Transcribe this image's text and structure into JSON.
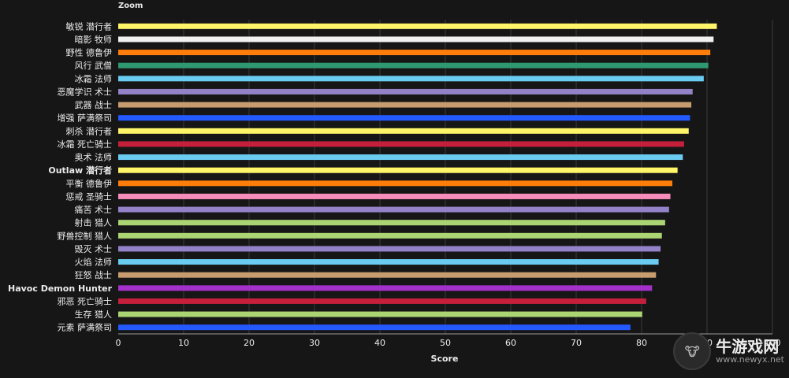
{
  "zoom_label": "Zoom",
  "watermark": {
    "cn": "牛游戏网",
    "url": "www.newyx.net"
  },
  "chart_data": {
    "type": "bar",
    "orientation": "horizontal",
    "xlabel": "Score",
    "xlim": [
      0,
      100
    ],
    "xticks": [
      0,
      10,
      20,
      30,
      40,
      50,
      60,
      70,
      80,
      90,
      100
    ],
    "grid": true,
    "legend": "none",
    "categories": [
      "敏锐 潜行者",
      "暗影 牧师",
      "野性 德鲁伊",
      "风行 武僧",
      "冰霜 法师",
      "恶魔学识 术士",
      "武器 战士",
      "增强 萨满祭司",
      "刺杀 潜行者",
      "冰霜 死亡骑士",
      "奥术 法师",
      "Outlaw 潜行者",
      "平衡 德鲁伊",
      "惩戒 圣骑士",
      "痛苦 术士",
      "射击 猎人",
      "野兽控制 猎人",
      "毁灭 术士",
      "火焰 法师",
      "狂怒 战士",
      "Havoc Demon Hunter",
      "邪恶 死亡骑士",
      "生存 猎人",
      "元素 萨满祭司"
    ],
    "values": [
      91.5,
      91.0,
      90.5,
      90.2,
      89.5,
      87.8,
      87.6,
      87.4,
      87.2,
      86.5,
      86.3,
      85.5,
      84.7,
      84.4,
      84.2,
      83.6,
      83.1,
      82.9,
      82.6,
      82.2,
      81.6,
      80.7,
      80.1,
      78.3
    ],
    "colors": [
      "#fff569",
      "#f0f0f0",
      "#ff7d0a",
      "#2f9a72",
      "#69ccf0",
      "#9482c9",
      "#c79c6e",
      "#2459ff",
      "#fff569",
      "#c41f3b",
      "#69ccf0",
      "#fff569",
      "#ff7d0a",
      "#f58cba",
      "#9482c9",
      "#abd473",
      "#abd473",
      "#9482c9",
      "#69ccf0",
      "#c79c6e",
      "#a330c9",
      "#c41f3b",
      "#abd473",
      "#2459ff"
    ]
  }
}
